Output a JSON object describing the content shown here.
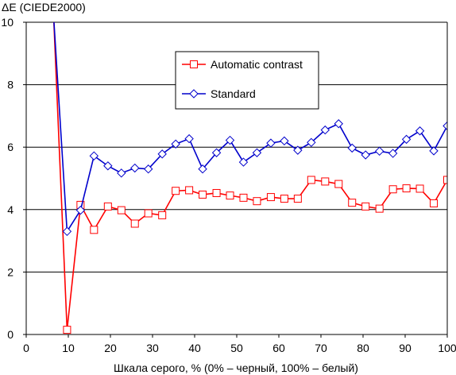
{
  "chart_data": {
    "type": "line",
    "ylabel": "ΔE (CIEDE2000)",
    "xlabel": "Шкала серого, % (0% – черный, 100% – белый)",
    "xlim": [
      0,
      100
    ],
    "ylim": [
      0,
      10
    ],
    "xticks": [
      0,
      10,
      20,
      30,
      40,
      50,
      60,
      70,
      80,
      90,
      100
    ],
    "yticks": [
      0,
      2,
      4,
      6,
      8,
      10
    ],
    "grid": "horizontal",
    "legend_position": "upper-middle",
    "series": [
      {
        "name": "Automatic contrast",
        "color": "#ff0000",
        "marker": "square",
        "x": [
          6.5,
          9.7,
          12.9,
          16.1,
          19.4,
          22.6,
          25.8,
          29.0,
          32.3,
          35.5,
          38.7,
          41.9,
          45.2,
          48.4,
          51.6,
          54.8,
          58.1,
          61.3,
          64.5,
          67.7,
          71.0,
          74.2,
          77.4,
          80.6,
          83.9,
          87.1,
          90.3,
          93.5,
          96.8,
          100
        ],
        "y": [
          10.2,
          0.15,
          4.15,
          3.35,
          4.1,
          3.98,
          3.55,
          3.88,
          3.82,
          4.6,
          4.62,
          4.48,
          4.53,
          4.45,
          4.38,
          4.27,
          4.4,
          4.35,
          4.35,
          4.95,
          4.9,
          4.82,
          4.22,
          4.1,
          4.03,
          4.65,
          4.68,
          4.67,
          4.2,
          4.95
        ]
      },
      {
        "name": "Standard",
        "color": "#0000cc",
        "marker": "diamond",
        "x": [
          6.5,
          9.7,
          12.9,
          16.1,
          19.4,
          22.6,
          25.8,
          29.0,
          32.3,
          35.5,
          38.7,
          41.9,
          45.2,
          48.4,
          51.6,
          54.8,
          58.1,
          61.3,
          64.5,
          67.7,
          71.0,
          74.2,
          77.4,
          80.6,
          83.9,
          87.1,
          90.3,
          93.5,
          96.8,
          100
        ],
        "y": [
          10.2,
          3.3,
          3.98,
          5.72,
          5.4,
          5.17,
          5.33,
          5.3,
          5.78,
          6.1,
          6.27,
          5.3,
          5.82,
          6.22,
          5.52,
          5.82,
          6.13,
          6.2,
          5.9,
          6.15,
          6.55,
          6.75,
          5.97,
          5.75,
          5.87,
          5.8,
          6.25,
          6.52,
          5.88,
          6.68
        ]
      }
    ]
  }
}
